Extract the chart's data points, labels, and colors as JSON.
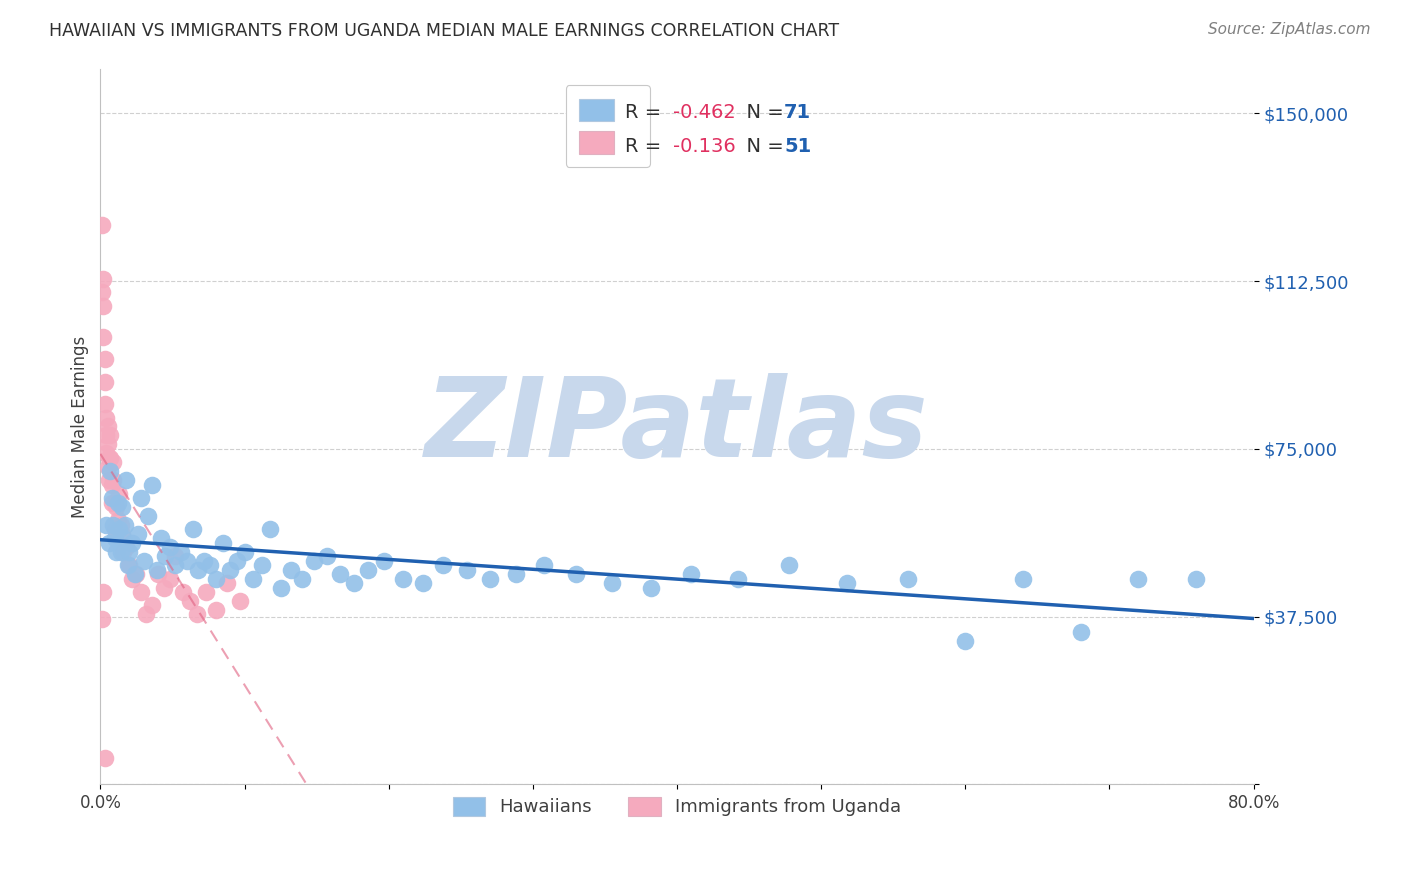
{
  "title": "HAWAIIAN VS IMMIGRANTS FROM UGANDA MEDIAN MALE EARNINGS CORRELATION CHART",
  "source": "Source: ZipAtlas.com",
  "ylabel": "Median Male Earnings",
  "yticks": [
    0,
    37500,
    75000,
    112500,
    150000
  ],
  "ytick_labels": [
    "",
    "$37,500",
    "$75,000",
    "$112,500",
    "$150,000"
  ],
  "xmin": 0.0,
  "xmax": 0.8,
  "ymin": 0,
  "ymax": 160000,
  "hawaiians_R": -0.462,
  "hawaiians_N": 71,
  "uganda_R": -0.136,
  "uganda_N": 51,
  "blue_color": "#92C0E8",
  "pink_color": "#F5AABE",
  "blue_line_color": "#2060B0",
  "pink_line_color": "#E06080",
  "watermark_color": "#C8D8EC",
  "title_color": "#303030",
  "source_color": "#808080",
  "axis_label_color": "#404040",
  "tick_label_color": "#2060B0",
  "legend_text_color": "#303030",
  "legend_R_val_color": "#E03060",
  "legend_N_val_color": "#2060B0",
  "hawaiians_x": [
    0.004,
    0.006,
    0.007,
    0.008,
    0.009,
    0.01,
    0.011,
    0.012,
    0.013,
    0.014,
    0.015,
    0.016,
    0.017,
    0.018,
    0.019,
    0.02,
    0.022,
    0.024,
    0.026,
    0.028,
    0.03,
    0.033,
    0.036,
    0.039,
    0.042,
    0.045,
    0.048,
    0.052,
    0.056,
    0.06,
    0.064,
    0.068,
    0.072,
    0.076,
    0.08,
    0.085,
    0.09,
    0.095,
    0.1,
    0.106,
    0.112,
    0.118,
    0.125,
    0.132,
    0.14,
    0.148,
    0.157,
    0.166,
    0.176,
    0.186,
    0.197,
    0.21,
    0.224,
    0.238,
    0.254,
    0.27,
    0.288,
    0.308,
    0.33,
    0.355,
    0.382,
    0.41,
    0.442,
    0.478,
    0.518,
    0.56,
    0.6,
    0.64,
    0.68,
    0.72,
    0.76
  ],
  "hawaiians_y": [
    58000,
    54000,
    70000,
    64000,
    58000,
    55000,
    52000,
    63000,
    57000,
    52000,
    62000,
    55000,
    58000,
    68000,
    49000,
    52000,
    54000,
    47000,
    56000,
    64000,
    50000,
    60000,
    67000,
    48000,
    55000,
    51000,
    53000,
    49000,
    52000,
    50000,
    57000,
    48000,
    50000,
    49000,
    46000,
    54000,
    48000,
    50000,
    52000,
    46000,
    49000,
    57000,
    44000,
    48000,
    46000,
    50000,
    51000,
    47000,
    45000,
    48000,
    50000,
    46000,
    45000,
    49000,
    48000,
    46000,
    47000,
    49000,
    47000,
    45000,
    44000,
    47000,
    46000,
    49000,
    45000,
    46000,
    32000,
    46000,
    34000,
    46000,
    46000
  ],
  "uganda_x": [
    0.001,
    0.001,
    0.002,
    0.002,
    0.002,
    0.003,
    0.003,
    0.003,
    0.004,
    0.004,
    0.004,
    0.005,
    0.005,
    0.005,
    0.006,
    0.006,
    0.007,
    0.007,
    0.008,
    0.008,
    0.009,
    0.009,
    0.01,
    0.01,
    0.011,
    0.012,
    0.013,
    0.014,
    0.015,
    0.016,
    0.018,
    0.02,
    0.022,
    0.025,
    0.028,
    0.032,
    0.036,
    0.04,
    0.044,
    0.048,
    0.052,
    0.057,
    0.062,
    0.067,
    0.073,
    0.08,
    0.088,
    0.097,
    0.001,
    0.002,
    0.003
  ],
  "uganda_y": [
    125000,
    110000,
    113000,
    107000,
    100000,
    95000,
    90000,
    85000,
    82000,
    78000,
    74000,
    80000,
    76000,
    71000,
    73000,
    68000,
    78000,
    73000,
    67000,
    63000,
    72000,
    68000,
    63000,
    57000,
    62000,
    59000,
    65000,
    58000,
    56000,
    52000,
    53000,
    49000,
    46000,
    47000,
    43000,
    38000,
    40000,
    47000,
    44000,
    46000,
    51000,
    43000,
    41000,
    38000,
    43000,
    39000,
    45000,
    41000,
    37000,
    43000,
    6000
  ]
}
